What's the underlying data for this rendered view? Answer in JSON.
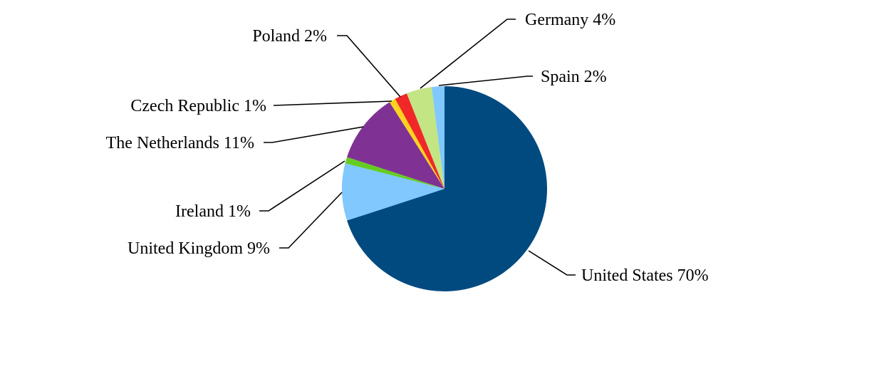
{
  "chart_data": {
    "type": "pie",
    "title": "",
    "start_angle_deg": 0,
    "direction": "clockwise",
    "slices": [
      {
        "name": "United States",
        "value": 70,
        "label": "United States 70%",
        "color": "#004A80"
      },
      {
        "name": "United Kingdom",
        "value": 9,
        "label": "United Kingdom 9%",
        "color": "#80C8FF"
      },
      {
        "name": "Ireland",
        "value": 1,
        "label": "Ireland 1%",
        "color": "#66CC22"
      },
      {
        "name": "The Netherlands",
        "value": 11,
        "label": "The Netherlands 11%",
        "color": "#7F3294"
      },
      {
        "name": "Czech Republic",
        "value": 1,
        "label": "Czech Republic 1%",
        "color": "#FFD21E"
      },
      {
        "name": "Poland",
        "value": 2,
        "label": "Poland 2%",
        "color": "#F02828"
      },
      {
        "name": "Germany",
        "value": 4,
        "label": "Germany 4%",
        "color": "#C3E584"
      },
      {
        "name": "Spain",
        "value": 2,
        "label": "Spain 2%",
        "color": "#80C8FF"
      }
    ]
  }
}
